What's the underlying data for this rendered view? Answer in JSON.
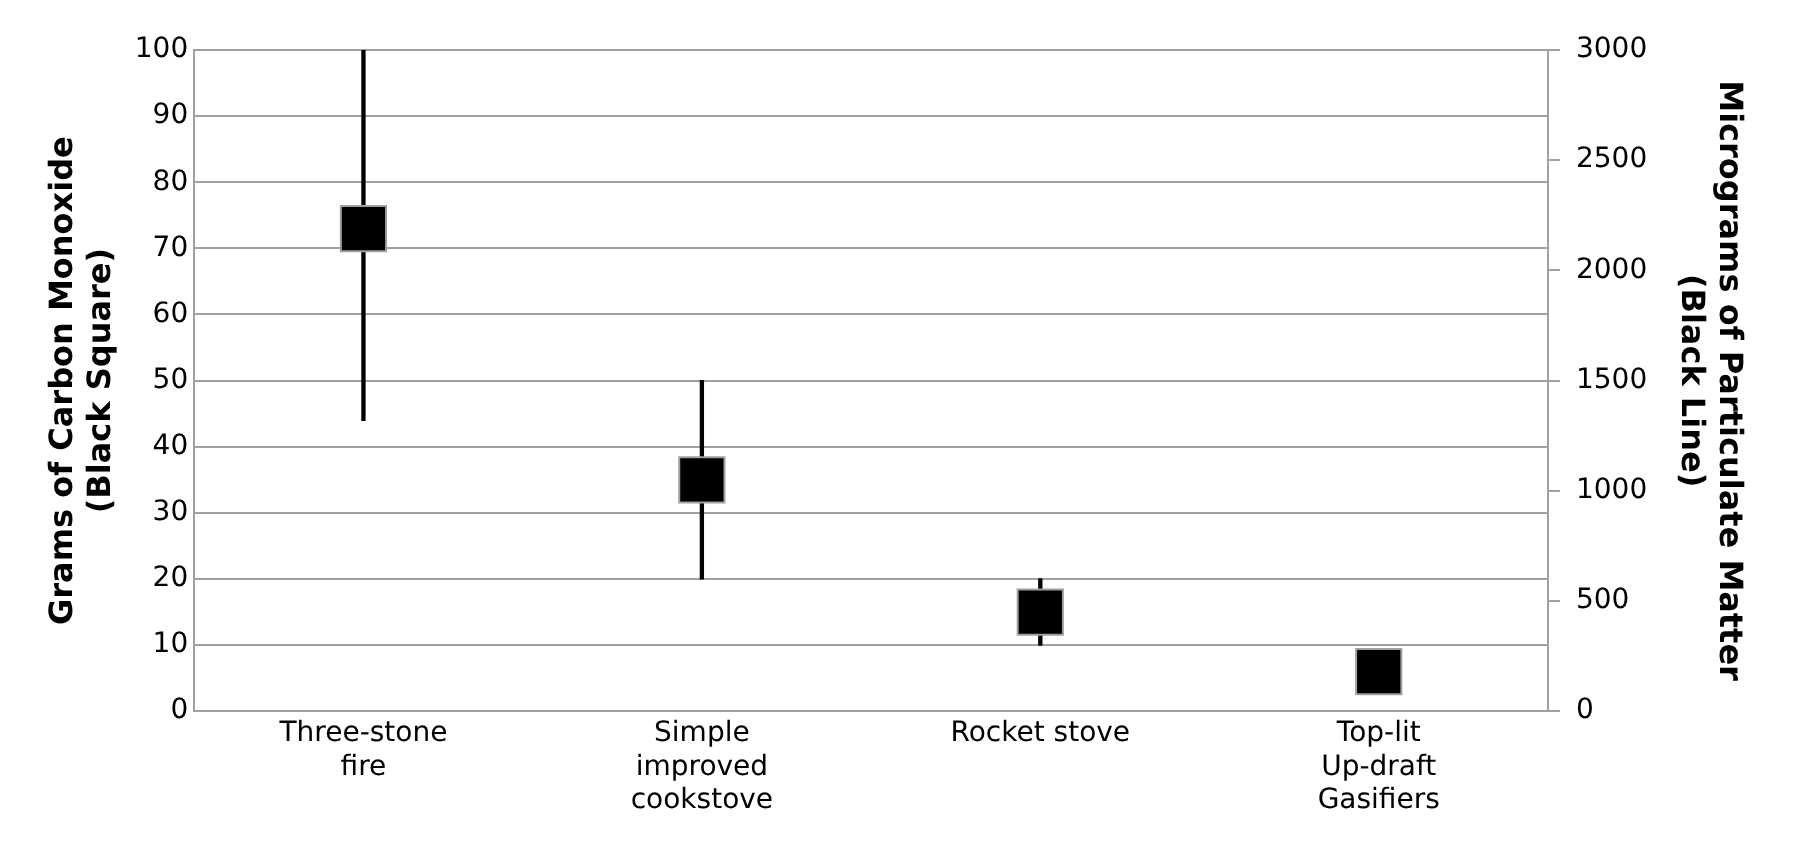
{
  "chart_data": {
    "type": "scatter",
    "categories": [
      "Three-stone fire",
      "Simple improved cookstove",
      "Rocket stove",
      "Top-lit Up-draft Gasifiers"
    ],
    "ylabel": "Grams of Carbon Monoxide (Black Square)",
    "y2label": "Micrograms of Particulate Matter (Black Line)",
    "series": [
      {
        "type": "bar",
        "axis": "y2",
        "color": "#000000",
        "base": [
          1320,
          600,
          300,
          null
        ],
        "values": [
          1680,
          900,
          300,
          null
        ]
      },
      {
        "color": "#000000",
        "values": [
          73,
          35,
          15,
          6
        ]
      }
    ],
    "marker": "square",
    "ylim": [
      0,
      100
    ],
    "yticks": [
      0,
      10,
      20,
      30,
      40,
      50,
      60,
      70,
      80,
      90,
      100
    ],
    "y2lim": [
      0,
      3000
    ],
    "y2ticks": [
      0,
      500,
      1000,
      1500,
      2000,
      2500,
      3000
    ],
    "grid": "y",
    "legend": false
  }
}
